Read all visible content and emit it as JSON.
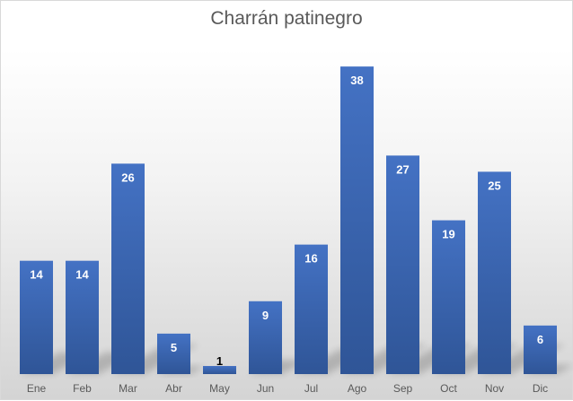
{
  "chart_data": {
    "type": "bar",
    "title": "Charrán patinegro",
    "categories": [
      "Ene",
      "Feb",
      "Mar",
      "Abr",
      "May",
      "Jun",
      "Jul",
      "Ago",
      "Sep",
      "Oct",
      "Nov",
      "Dic"
    ],
    "values": [
      14,
      14,
      26,
      5,
      1,
      9,
      16,
      38,
      27,
      19,
      25,
      6
    ],
    "ylim": [
      0,
      40
    ],
    "grid": false,
    "legend": "none",
    "bar_color": "#4472c4",
    "bar_color_dark": "#2f5597",
    "label_color_inside": "#ffffff",
    "label_color_outside": "#000000",
    "axis_label_color": "#595959"
  }
}
